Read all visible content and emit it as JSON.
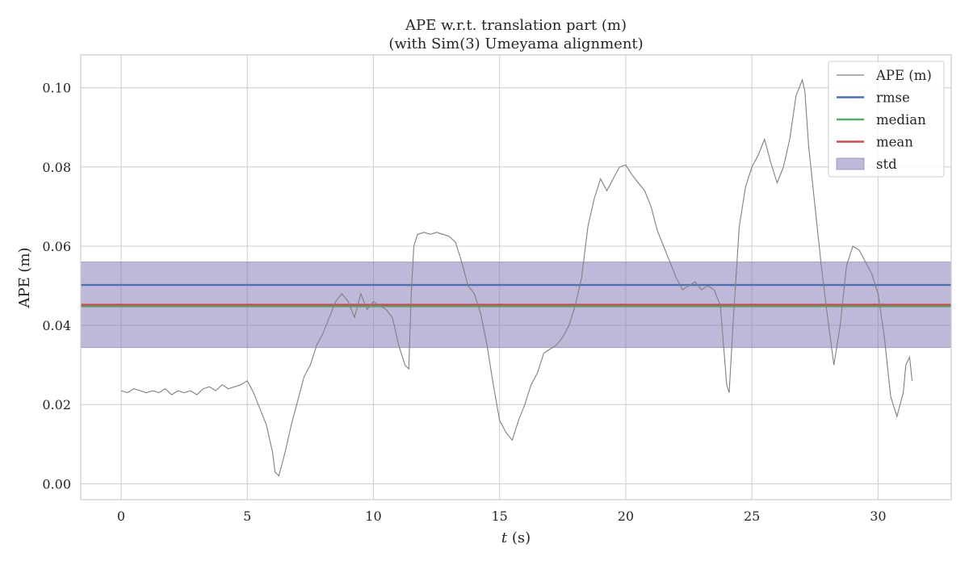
{
  "chart_data": {
    "type": "line",
    "title": "APE w.r.t. translation part (m)",
    "subtitle": "(with Sim(3) Umeyama alignment)",
    "xlabel_var": "t",
    "xlabel_unit": " (s)",
    "ylabel": "APE (m)",
    "xlim": [
      -1.6,
      32.9
    ],
    "ylim": [
      -0.004,
      0.1083
    ],
    "xticks": [
      0,
      5,
      10,
      15,
      20,
      25,
      30
    ],
    "yticks": [
      0.0,
      0.02,
      0.04,
      0.06,
      0.08,
      0.1
    ],
    "ytick_labels": [
      "0.00",
      "0.02",
      "0.04",
      "0.06",
      "0.08",
      "0.10"
    ],
    "grid": true,
    "legend_position": "top-right",
    "colors": {
      "ape": "#808080",
      "rmse": "#4c72b0",
      "median": "#55a868",
      "mean": "#c44e52",
      "std": "#8172b2"
    },
    "statistics": {
      "rmse": 0.0502,
      "median": 0.0448,
      "mean": 0.0452,
      "std_lower": 0.0344,
      "std_upper": 0.056
    },
    "legend": [
      {
        "key": "ape",
        "label": "APE (m)"
      },
      {
        "key": "rmse",
        "label": "rmse"
      },
      {
        "key": "median",
        "label": "median"
      },
      {
        "key": "mean",
        "label": "mean"
      },
      {
        "key": "std",
        "label": "std"
      }
    ],
    "series": [
      {
        "name": "APE (m)",
        "x": [
          0,
          0.25,
          0.5,
          0.75,
          1,
          1.25,
          1.5,
          1.75,
          2,
          2.25,
          2.5,
          2.75,
          3,
          3.25,
          3.5,
          3.75,
          4,
          4.25,
          4.5,
          4.75,
          5,
          5.25,
          5.5,
          5.75,
          6,
          6.1,
          6.25,
          6.5,
          6.75,
          7,
          7.25,
          7.5,
          7.75,
          8,
          8.25,
          8.5,
          8.75,
          9,
          9.25,
          9.5,
          9.75,
          10,
          10.25,
          10.5,
          10.75,
          11,
          11.25,
          11.4,
          11.5,
          11.6,
          11.75,
          12,
          12.25,
          12.5,
          12.75,
          13,
          13.25,
          13.5,
          13.75,
          14,
          14.25,
          14.5,
          14.75,
          15,
          15.25,
          15.5,
          15.75,
          16,
          16.25,
          16.5,
          16.75,
          17,
          17.25,
          17.5,
          17.75,
          18,
          18.25,
          18.5,
          18.75,
          19,
          19.25,
          19.5,
          19.75,
          20,
          20.25,
          20.5,
          20.75,
          21,
          21.25,
          21.5,
          21.75,
          22,
          22.25,
          22.5,
          22.75,
          23,
          23.25,
          23.5,
          23.75,
          24,
          24.1,
          24.25,
          24.5,
          24.75,
          25,
          25.25,
          25.5,
          25.75,
          26,
          26.25,
          26.5,
          26.75,
          27,
          27.1,
          27.25,
          27.5,
          27.75,
          28,
          28.25,
          28.5,
          28.75,
          29,
          29.25,
          29.5,
          29.75,
          30,
          30.25,
          30.5,
          30.75,
          31,
          31.1,
          31.25,
          31.35
        ],
        "values": [
          0.0235,
          0.023,
          0.024,
          0.0235,
          0.023,
          0.0235,
          0.023,
          0.024,
          0.0225,
          0.0235,
          0.023,
          0.0235,
          0.0225,
          0.024,
          0.0245,
          0.0235,
          0.025,
          0.024,
          0.0245,
          0.025,
          0.026,
          0.023,
          0.019,
          0.015,
          0.008,
          0.003,
          0.002,
          0.008,
          0.015,
          0.021,
          0.027,
          0.03,
          0.035,
          0.038,
          0.042,
          0.046,
          0.048,
          0.046,
          0.042,
          0.048,
          0.044,
          0.046,
          0.045,
          0.044,
          0.042,
          0.035,
          0.03,
          0.029,
          0.048,
          0.06,
          0.063,
          0.0635,
          0.063,
          0.0635,
          0.063,
          0.0625,
          0.061,
          0.056,
          0.05,
          0.048,
          0.043,
          0.035,
          0.025,
          0.016,
          0.013,
          0.011,
          0.016,
          0.02,
          0.025,
          0.028,
          0.033,
          0.034,
          0.035,
          0.037,
          0.04,
          0.045,
          0.052,
          0.065,
          0.072,
          0.077,
          0.074,
          0.077,
          0.08,
          0.0805,
          0.078,
          0.076,
          0.074,
          0.07,
          0.064,
          0.06,
          0.056,
          0.052,
          0.049,
          0.05,
          0.051,
          0.049,
          0.05,
          0.049,
          0.045,
          0.025,
          0.023,
          0.04,
          0.065,
          0.075,
          0.08,
          0.083,
          0.087,
          0.081,
          0.076,
          0.08,
          0.087,
          0.098,
          0.102,
          0.099,
          0.085,
          0.07,
          0.055,
          0.042,
          0.03,
          0.04,
          0.055,
          0.06,
          0.059,
          0.056,
          0.053,
          0.048,
          0.037,
          0.022,
          0.017,
          0.023,
          0.03,
          0.032,
          0.026
        ]
      }
    ]
  }
}
